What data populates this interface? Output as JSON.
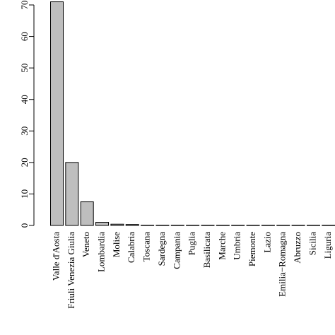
{
  "chart_data": {
    "type": "bar",
    "categories": [
      "Valle d'Aosta",
      "Friuli Venezia Giulia",
      "Veneto",
      "Lombardia",
      "Molise",
      "Calabria",
      "Toscana",
      "Sardegna",
      "Campania",
      "Puglia",
      "Basilicata",
      "Marche",
      "Umbria",
      "Piemonte",
      "Lazio",
      "Emilia−Romagna",
      "Abruzzo",
      "Sicilia",
      "Liguria"
    ],
    "values": [
      71,
      20,
      7.5,
      1,
      0.4,
      0.3,
      0.1,
      0.1,
      0.08,
      0.07,
      0.06,
      0.05,
      0.05,
      0.04,
      0.04,
      0.03,
      0.03,
      0.02,
      0.02
    ],
    "title": "",
    "xlabel": "",
    "ylabel": "",
    "ylim": [
      0,
      70
    ],
    "yticks": [
      "0",
      "10",
      "20",
      "30",
      "40",
      "50",
      "60",
      "70"
    ],
    "grid": false,
    "bar_color": "#bebebe"
  }
}
